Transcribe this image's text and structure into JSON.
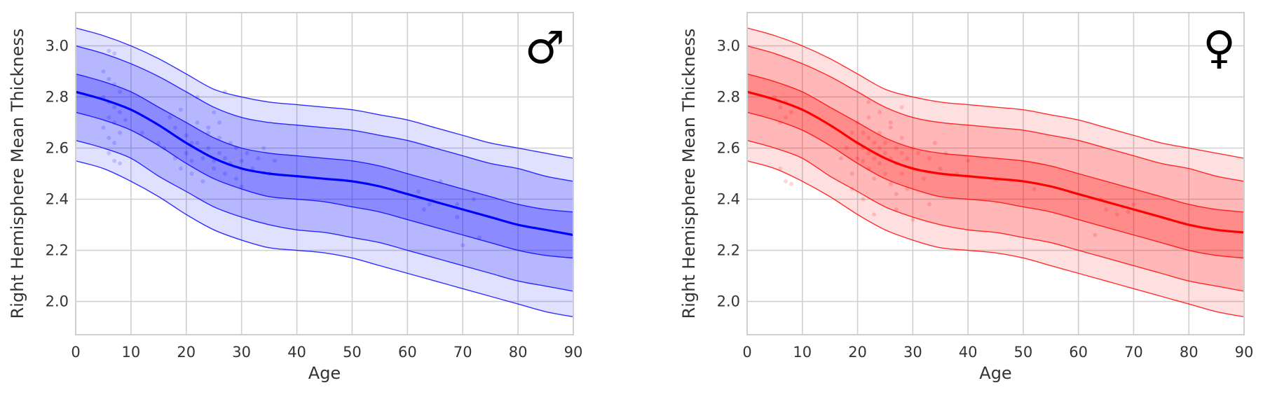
{
  "chart_data": [
    {
      "type": "line",
      "panel": "male",
      "symbol": "♂",
      "xlabel": "Age",
      "ylabel": "Right Hemisphere Mean Thickness",
      "xlim": [
        0,
        90
      ],
      "ylim": [
        1.87,
        3.13
      ],
      "xticks": [
        "0",
        "10",
        "20",
        "30",
        "40",
        "50",
        "60",
        "70",
        "80",
        "90"
      ],
      "yticks": [
        "2.0",
        "2.2",
        "2.4",
        "2.6",
        "2.8",
        "3.0"
      ],
      "grid": true,
      "color": "#0000ff",
      "x": [
        0,
        5,
        10,
        15,
        20,
        25,
        30,
        35,
        40,
        45,
        50,
        55,
        60,
        65,
        70,
        75,
        80,
        85,
        90
      ],
      "series": [
        {
          "values": [
            2.55,
            2.52,
            2.47,
            2.41,
            2.34,
            2.28,
            2.24,
            2.21,
            2.2,
            2.19,
            2.17,
            2.14,
            2.11,
            2.08,
            2.05,
            2.02,
            1.99,
            1.96,
            1.94
          ]
        },
        {
          "values": [
            2.63,
            2.6,
            2.56,
            2.49,
            2.43,
            2.37,
            2.33,
            2.3,
            2.28,
            2.27,
            2.25,
            2.23,
            2.2,
            2.17,
            2.14,
            2.11,
            2.08,
            2.06,
            2.04
          ]
        },
        {
          "values": [
            2.74,
            2.71,
            2.67,
            2.61,
            2.54,
            2.48,
            2.44,
            2.41,
            2.4,
            2.39,
            2.37,
            2.35,
            2.32,
            2.29,
            2.26,
            2.23,
            2.2,
            2.18,
            2.17
          ]
        },
        {
          "values": [
            2.82,
            2.79,
            2.75,
            2.69,
            2.62,
            2.56,
            2.52,
            2.5,
            2.49,
            2.48,
            2.47,
            2.45,
            2.42,
            2.39,
            2.36,
            2.33,
            2.3,
            2.28,
            2.26
          ]
        },
        {
          "values": [
            2.89,
            2.86,
            2.82,
            2.76,
            2.7,
            2.64,
            2.6,
            2.58,
            2.57,
            2.56,
            2.55,
            2.53,
            2.5,
            2.47,
            2.44,
            2.41,
            2.38,
            2.36,
            2.35
          ]
        },
        {
          "values": [
            3.0,
            2.97,
            2.93,
            2.88,
            2.82,
            2.76,
            2.72,
            2.7,
            2.69,
            2.68,
            2.67,
            2.65,
            2.63,
            2.6,
            2.57,
            2.54,
            2.52,
            2.49,
            2.47
          ]
        },
        {
          "values": [
            3.07,
            3.04,
            3.0,
            2.95,
            2.89,
            2.83,
            2.8,
            2.78,
            2.77,
            2.76,
            2.75,
            2.73,
            2.71,
            2.68,
            2.65,
            2.62,
            2.6,
            2.58,
            2.56
          ]
        }
      ],
      "points": [
        [
          6,
          2.98
        ],
        [
          7,
          2.97
        ],
        [
          5,
          2.9
        ],
        [
          6,
          2.87
        ],
        [
          7,
          2.85
        ],
        [
          8,
          2.82
        ],
        [
          5,
          2.8
        ],
        [
          6,
          2.78
        ],
        [
          7,
          2.76
        ],
        [
          8,
          2.74
        ],
        [
          6,
          2.72
        ],
        [
          7,
          2.7
        ],
        [
          5,
          2.68
        ],
        [
          8,
          2.66
        ],
        [
          6,
          2.64
        ],
        [
          7,
          2.62
        ],
        [
          6,
          2.58
        ],
        [
          7,
          2.55
        ],
        [
          8,
          2.54
        ],
        [
          9,
          2.71
        ],
        [
          12,
          2.66
        ],
        [
          15,
          2.62
        ],
        [
          17,
          2.72
        ],
        [
          18,
          2.68
        ],
        [
          19,
          2.75
        ],
        [
          20,
          2.65
        ],
        [
          20,
          2.58
        ],
        [
          21,
          2.55
        ],
        [
          21,
          2.5
        ],
        [
          22,
          2.7
        ],
        [
          22,
          2.62
        ],
        [
          23,
          2.56
        ],
        [
          23,
          2.47
        ],
        [
          24,
          2.68
        ],
        [
          24,
          2.6
        ],
        [
          25,
          2.55
        ],
        [
          25,
          2.52
        ],
        [
          26,
          2.7
        ],
        [
          26,
          2.64
        ],
        [
          26,
          2.58
        ],
        [
          27,
          2.56
        ],
        [
          27,
          2.5
        ],
        [
          28,
          2.62
        ],
        [
          28,
          2.54
        ],
        [
          29,
          2.48
        ],
        [
          29,
          2.6
        ],
        [
          30,
          2.55
        ],
        [
          30,
          2.45
        ],
        [
          31,
          2.58
        ],
        [
          32,
          2.52
        ],
        [
          33,
          2.56
        ],
        [
          34,
          2.6
        ],
        [
          35,
          2.5
        ],
        [
          36,
          2.55
        ],
        [
          22,
          2.8
        ],
        [
          25,
          2.74
        ],
        [
          27,
          2.82
        ],
        [
          18,
          2.56
        ],
        [
          19,
          2.52
        ],
        [
          16,
          2.6
        ],
        [
          21,
          2.62
        ],
        [
          24,
          2.66
        ],
        [
          62,
          2.43
        ],
        [
          63,
          2.36
        ],
        [
          64,
          2.38
        ],
        [
          66,
          2.47
        ],
        [
          69,
          2.38
        ],
        [
          70,
          2.22
        ],
        [
          72,
          2.4
        ],
        [
          73,
          2.25
        ],
        [
          69,
          2.33
        ]
      ]
    },
    {
      "type": "line",
      "panel": "female",
      "symbol": "♀",
      "xlabel": "Age",
      "ylabel": "Right Hemisphere Mean Thickness",
      "xlim": [
        0,
        90
      ],
      "ylim": [
        1.87,
        3.13
      ],
      "xticks": [
        "0",
        "10",
        "20",
        "30",
        "40",
        "50",
        "60",
        "70",
        "80",
        "90"
      ],
      "yticks": [
        "2.0",
        "2.2",
        "2.4",
        "2.6",
        "2.8",
        "3.0"
      ],
      "grid": true,
      "color": "#ff0000",
      "x": [
        0,
        5,
        10,
        15,
        20,
        25,
        30,
        35,
        40,
        45,
        50,
        55,
        60,
        65,
        70,
        75,
        80,
        85,
        90
      ],
      "series": [
        {
          "values": [
            2.55,
            2.52,
            2.47,
            2.41,
            2.34,
            2.28,
            2.24,
            2.21,
            2.2,
            2.19,
            2.17,
            2.14,
            2.11,
            2.08,
            2.05,
            2.02,
            1.99,
            1.96,
            1.94
          ]
        },
        {
          "values": [
            2.63,
            2.6,
            2.56,
            2.49,
            2.43,
            2.37,
            2.33,
            2.3,
            2.28,
            2.27,
            2.25,
            2.23,
            2.2,
            2.17,
            2.14,
            2.11,
            2.08,
            2.06,
            2.04
          ]
        },
        {
          "values": [
            2.74,
            2.71,
            2.67,
            2.61,
            2.54,
            2.48,
            2.44,
            2.41,
            2.4,
            2.39,
            2.37,
            2.35,
            2.32,
            2.29,
            2.26,
            2.23,
            2.2,
            2.18,
            2.17
          ]
        },
        {
          "values": [
            2.82,
            2.79,
            2.75,
            2.69,
            2.62,
            2.56,
            2.52,
            2.5,
            2.49,
            2.48,
            2.47,
            2.45,
            2.42,
            2.39,
            2.36,
            2.33,
            2.3,
            2.28,
            2.27
          ]
        },
        {
          "values": [
            2.89,
            2.86,
            2.82,
            2.76,
            2.7,
            2.64,
            2.6,
            2.58,
            2.57,
            2.56,
            2.55,
            2.53,
            2.5,
            2.47,
            2.44,
            2.41,
            2.38,
            2.36,
            2.35
          ]
        },
        {
          "values": [
            3.0,
            2.97,
            2.93,
            2.88,
            2.82,
            2.76,
            2.72,
            2.7,
            2.69,
            2.68,
            2.67,
            2.65,
            2.63,
            2.6,
            2.57,
            2.54,
            2.52,
            2.49,
            2.47
          ]
        },
        {
          "values": [
            3.07,
            3.04,
            3.0,
            2.95,
            2.89,
            2.83,
            2.8,
            2.78,
            2.77,
            2.76,
            2.75,
            2.73,
            2.71,
            2.68,
            2.65,
            2.62,
            2.6,
            2.58,
            2.56
          ]
        }
      ],
      "points": [
        [
          5,
          2.8
        ],
        [
          6,
          2.76
        ],
        [
          7,
          2.72
        ],
        [
          6,
          2.7
        ],
        [
          7,
          2.78
        ],
        [
          8,
          2.74
        ],
        [
          6,
          2.52
        ],
        [
          7,
          2.47
        ],
        [
          8,
          2.46
        ],
        [
          17,
          2.56
        ],
        [
          18,
          2.6
        ],
        [
          19,
          2.5
        ],
        [
          19,
          2.66
        ],
        [
          20,
          2.62
        ],
        [
          20,
          2.56
        ],
        [
          20,
          2.7
        ],
        [
          21,
          2.6
        ],
        [
          21,
          2.55
        ],
        [
          21,
          2.66
        ],
        [
          22,
          2.58
        ],
        [
          22,
          2.52
        ],
        [
          22,
          2.64
        ],
        [
          22,
          2.72
        ],
        [
          23,
          2.62
        ],
        [
          23,
          2.56
        ],
        [
          23,
          2.48
        ],
        [
          24,
          2.6
        ],
        [
          24,
          2.54
        ],
        [
          24,
          2.66
        ],
        [
          25,
          2.58
        ],
        [
          25,
          2.5
        ],
        [
          25,
          2.62
        ],
        [
          26,
          2.56
        ],
        [
          26,
          2.46
        ],
        [
          26,
          2.68
        ],
        [
          27,
          2.6
        ],
        [
          27,
          2.54
        ],
        [
          27,
          2.42
        ],
        [
          28,
          2.58
        ],
        [
          28,
          2.5
        ],
        [
          28,
          2.64
        ],
        [
          29,
          2.56
        ],
        [
          29,
          2.44
        ],
        [
          30,
          2.6
        ],
        [
          30,
          2.52
        ],
        [
          31,
          2.58
        ],
        [
          32,
          2.48
        ],
        [
          33,
          2.56
        ],
        [
          34,
          2.62
        ],
        [
          35,
          2.52
        ],
        [
          36,
          2.58
        ],
        [
          38,
          2.5
        ],
        [
          40,
          2.55
        ],
        [
          22,
          2.78
        ],
        [
          24,
          2.74
        ],
        [
          26,
          2.7
        ],
        [
          28,
          2.76
        ],
        [
          19,
          2.44
        ],
        [
          21,
          2.4
        ],
        [
          23,
          2.34
        ],
        [
          27,
          2.36
        ],
        [
          30,
          2.32
        ],
        [
          33,
          2.38
        ],
        [
          45,
          2.48
        ],
        [
          52,
          2.44
        ],
        [
          63,
          2.26
        ],
        [
          64,
          2.4
        ],
        [
          65,
          2.36
        ],
        [
          67,
          2.34
        ],
        [
          68,
          2.37
        ],
        [
          69,
          2.35
        ],
        [
          70,
          2.38
        ]
      ]
    }
  ]
}
